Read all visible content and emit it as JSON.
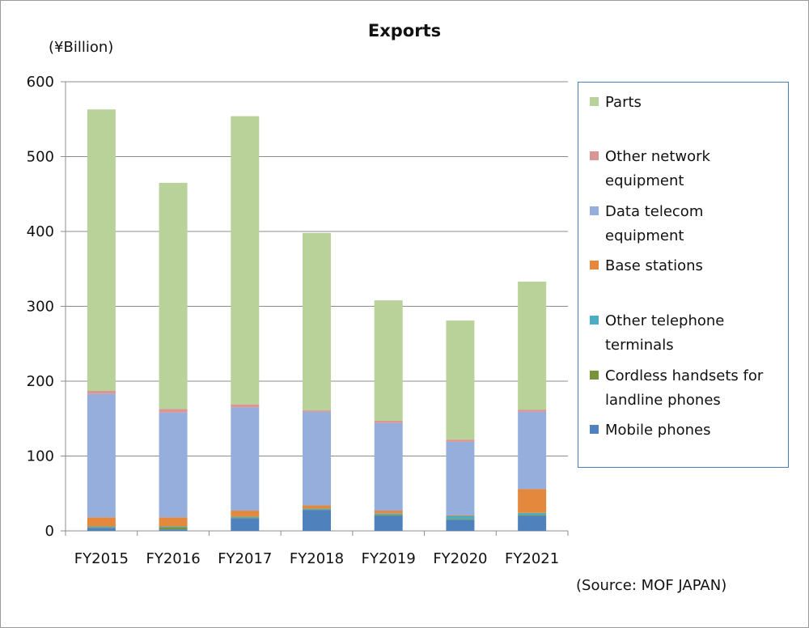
{
  "chart_data": {
    "type": "bar",
    "stacked": true,
    "title": "Exports",
    "ylabel": "(¥Billion)",
    "source": "(Source: MOF JAPAN)",
    "ylim": [
      0,
      600
    ],
    "yticks": [
      0,
      100,
      200,
      300,
      400,
      500,
      600
    ],
    "grid": true,
    "legend_position": "right",
    "categories": [
      "FY2015",
      "FY2016",
      "FY2017",
      "FY2018",
      "FY2019",
      "FY2020",
      "FY2021"
    ],
    "series": [
      {
        "name": "Mobile phones",
        "color": "#4f81bd",
        "values": [
          4,
          2,
          17,
          28,
          20,
          15,
          20
        ]
      },
      {
        "name": "Cordless handsets for landline phones",
        "color": "#77933c",
        "values": [
          1,
          3,
          1,
          1,
          1,
          1,
          1
        ]
      },
      {
        "name": "Other telephone terminals",
        "color": "#4bacc6",
        "values": [
          1,
          1,
          1,
          1,
          2,
          4,
          3
        ]
      },
      {
        "name": "Base stations",
        "color": "#e3883d",
        "values": [
          12,
          12,
          8,
          4,
          4,
          1,
          32
        ]
      },
      {
        "name": "Data telecom equipment",
        "color": "#95aedb",
        "values": [
          165,
          140,
          138,
          125,
          117,
          98,
          103
        ]
      },
      {
        "name": "Other network equipment",
        "color": "#d99694",
        "values": [
          4,
          5,
          4,
          2,
          3,
          3,
          3
        ]
      },
      {
        "name": "Parts",
        "color": "#b9d29a",
        "values": [
          376,
          302,
          385,
          237,
          161,
          159,
          171
        ]
      }
    ]
  },
  "legend": [
    {
      "label": "Parts",
      "color": "#b9d29a"
    },
    {
      "label": "Other network\nequipment",
      "color": "#d99694"
    },
    {
      "label": "Data telecom\nequipment",
      "color": "#95aedb"
    },
    {
      "label": "Base stations",
      "color": "#e3883d"
    },
    {
      "label": "Other telephone\nterminals",
      "color": "#4bacc6"
    },
    {
      "label": "Cordless handsets for\nlandline phones",
      "color": "#77933c"
    },
    {
      "label": "Mobile phones",
      "color": "#4f81bd"
    }
  ]
}
